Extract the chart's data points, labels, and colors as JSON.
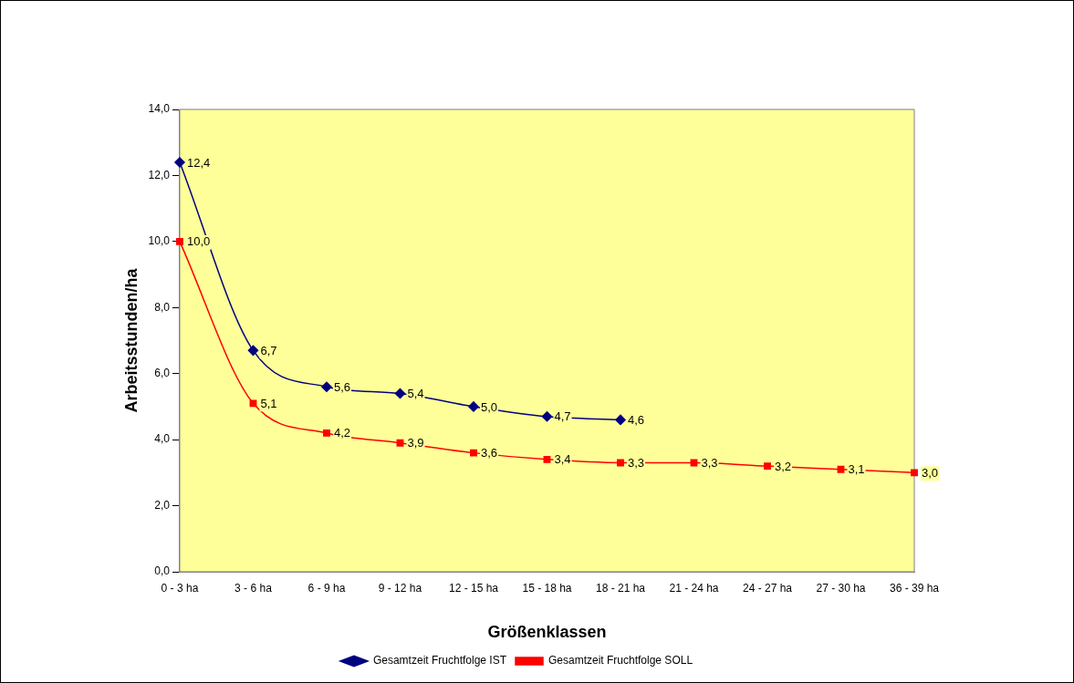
{
  "chart_data": {
    "type": "line",
    "xlabel": "Größenklassen",
    "ylabel": "Arbeitsstunden/ha",
    "categories": [
      "0 - 3 ha",
      "3 - 6 ha",
      "6 - 9 ha",
      "9 - 12 ha",
      "12 - 15 ha",
      "15 - 18 ha",
      "18 - 21 ha",
      "21 - 24 ha",
      "24 - 27 ha",
      "27 - 30 ha",
      "36 - 39 ha"
    ],
    "series": [
      {
        "name": "Gesamtzeit Fruchtfolge IST",
        "color": "#000080",
        "marker": "diamond",
        "values": [
          12.4,
          6.7,
          5.6,
          5.4,
          5.0,
          4.7,
          4.6,
          null,
          null,
          null,
          null
        ],
        "value_labels": [
          "12,4",
          "6,7",
          "5,6",
          "5,4",
          "5,0",
          "4,7",
          "4,6",
          null,
          null,
          null,
          null
        ]
      },
      {
        "name": "Gesamtzeit Fruchtfolge SOLL",
        "color": "#ff0000",
        "marker": "square",
        "values": [
          10.0,
          5.1,
          4.2,
          3.9,
          3.6,
          3.4,
          3.3,
          3.3,
          3.2,
          3.1,
          3.0
        ],
        "value_labels": [
          "10,0",
          "5,1",
          "4,2",
          "3,9",
          "3,6",
          "3,4",
          "3,3",
          "3,3",
          "3,2",
          "3,1",
          "3,0"
        ]
      }
    ],
    "ylim": [
      0,
      14
    ],
    "yticks": [
      {
        "value": 0,
        "label": "0,0"
      },
      {
        "value": 2,
        "label": "2,0"
      },
      {
        "value": 4,
        "label": "4,0"
      },
      {
        "value": 6,
        "label": "6,0"
      },
      {
        "value": 8,
        "label": "8,0"
      },
      {
        "value": 10,
        "label": "10,0"
      },
      {
        "value": 12,
        "label": "12,0"
      },
      {
        "value": 14,
        "label": "14,0"
      }
    ],
    "grid": false,
    "legend": "bottom"
  }
}
